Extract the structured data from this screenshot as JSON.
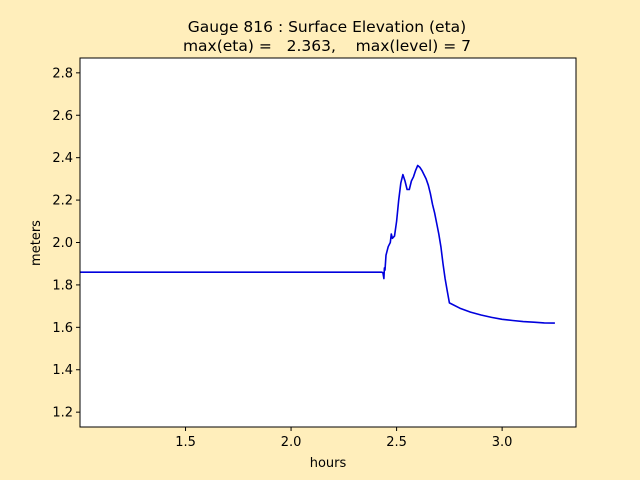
{
  "chart_data": {
    "type": "line",
    "title_line1": "Gauge 816 : Surface Elevation (eta)",
    "title_line2": "max(eta) =   2.363,    max(level) = 7",
    "xlabel": "hours",
    "ylabel": "meters",
    "xlim": [
      1.0,
      3.35
    ],
    "ylim": [
      1.13,
      2.87
    ],
    "xticks": [
      1.5,
      2.0,
      2.5,
      3.0
    ],
    "xtick_labels": [
      "1.5",
      "2.0",
      "2.5",
      "3.0"
    ],
    "yticks": [
      1.2,
      1.4,
      1.6,
      1.8,
      2.0,
      2.2,
      2.4,
      2.6,
      2.8
    ],
    "ytick_labels": [
      "1.2",
      "1.4",
      "1.6",
      "1.8",
      "2.0",
      "2.2",
      "2.4",
      "2.6",
      "2.8"
    ],
    "grid": false,
    "colors": {
      "line": "#0000dd",
      "figure_bg": "#ffeebb",
      "axes_bg": "#ffffff"
    },
    "series": [
      {
        "x": [
          1.0,
          2.43,
          2.435,
          2.44,
          2.442,
          2.445,
          2.45,
          2.46,
          2.47,
          2.475,
          2.48,
          2.49,
          2.5,
          2.51,
          2.52,
          2.53,
          2.54,
          2.55,
          2.56,
          2.57,
          2.58,
          2.59,
          2.6,
          2.61,
          2.62,
          2.63,
          2.64,
          2.65,
          2.66,
          2.67,
          2.68,
          2.69,
          2.7,
          2.71,
          2.72,
          2.73,
          2.74,
          2.75,
          2.8,
          2.85,
          2.9,
          2.95,
          3.0,
          3.05,
          3.1,
          3.15,
          3.2,
          3.25
        ],
        "y": [
          1.86,
          1.86,
          1.858,
          1.83,
          1.88,
          1.87,
          1.94,
          1.98,
          2.0,
          2.04,
          2.02,
          2.03,
          2.1,
          2.2,
          2.28,
          2.32,
          2.29,
          2.25,
          2.25,
          2.29,
          2.31,
          2.34,
          2.363,
          2.355,
          2.34,
          2.32,
          2.3,
          2.27,
          2.23,
          2.18,
          2.14,
          2.09,
          2.04,
          1.98,
          1.9,
          1.83,
          1.77,
          1.715,
          1.69,
          1.672,
          1.658,
          1.647,
          1.638,
          1.632,
          1.627,
          1.624,
          1.621,
          1.62
        ]
      }
    ]
  }
}
